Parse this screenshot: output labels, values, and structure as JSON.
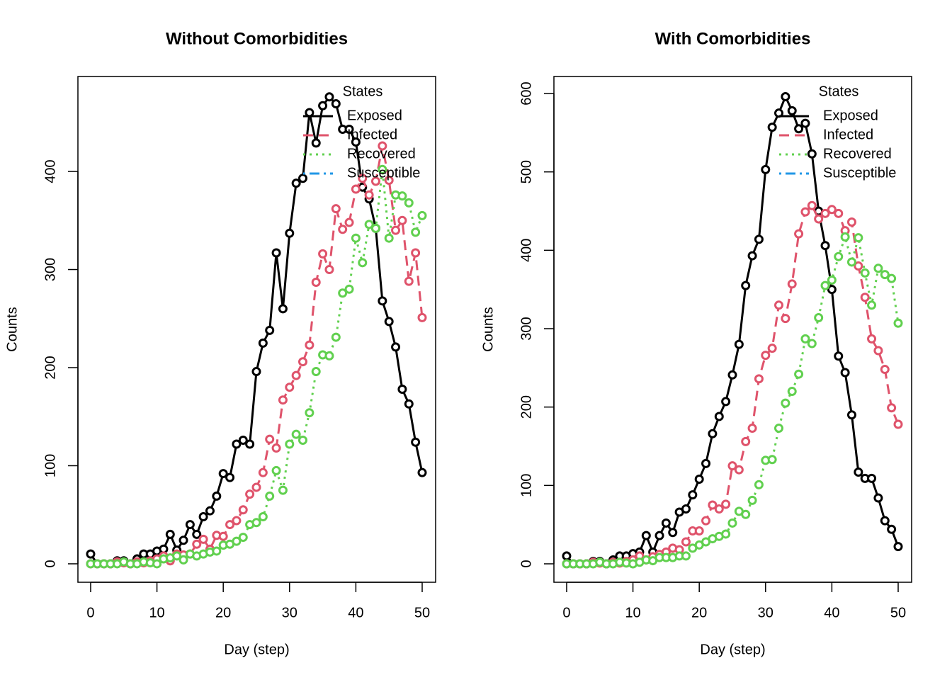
{
  "chart_data": [
    {
      "type": "line",
      "title": "Without Comorbidities",
      "x_label": "Day (step)",
      "y_label": "Counts",
      "x": [
        0,
        1,
        2,
        3,
        4,
        5,
        6,
        7,
        8,
        9,
        10,
        11,
        12,
        13,
        14,
        15,
        16,
        17,
        18,
        19,
        20,
        21,
        22,
        23,
        24,
        25,
        26,
        27,
        28,
        29,
        30,
        31,
        32,
        33,
        34,
        35,
        36,
        37,
        38,
        39,
        40,
        41,
        42,
        43,
        44,
        45,
        46,
        47,
        48,
        49,
        50
      ],
      "xlim": [
        -1.92,
        52.03
      ],
      "xticks": [
        0,
        10,
        20,
        30,
        40,
        50
      ],
      "ylim": [
        -18.8,
        496.8
      ],
      "yticks": [
        0,
        100,
        200,
        300,
        400
      ],
      "legend": "topright",
      "legend_title": "States",
      "series": [
        {
          "name": "Exposed",
          "color": "#000000",
          "dash": "solid",
          "values": [
            10,
            0,
            0,
            0,
            3,
            3,
            0,
            5,
            10,
            10,
            13,
            15,
            30,
            14,
            24,
            40,
            30,
            48,
            54,
            69,
            92,
            88,
            122,
            126,
            122,
            196,
            225,
            238,
            317,
            260,
            337,
            388,
            393,
            460,
            429,
            467,
            476,
            469,
            443,
            443,
            430,
            384,
            372,
            342,
            268,
            247,
            221,
            178,
            163,
            124,
            93
          ]
        },
        {
          "name": "Infected",
          "color": "#DF536B",
          "dash": "dashed",
          "values": [
            0,
            0,
            0,
            0,
            2,
            1,
            0,
            2,
            1,
            3,
            5,
            8,
            3,
            10,
            9,
            10,
            20,
            25,
            15,
            29,
            28,
            40,
            44,
            55,
            71,
            78,
            93,
            127,
            118,
            167,
            180,
            192,
            206,
            223,
            287,
            316,
            300,
            362,
            341,
            348,
            382,
            393,
            376,
            390,
            426,
            391,
            340,
            350,
            288,
            317,
            251
          ]
        },
        {
          "name": "Recovered",
          "color": "#61D04F",
          "dash": "dotted",
          "values": [
            0,
            0,
            0,
            0,
            0,
            2,
            0,
            0,
            2,
            1,
            0,
            5,
            6,
            8,
            4,
            10,
            8,
            10,
            12,
            13,
            19,
            20,
            23,
            27,
            40,
            42,
            48,
            69,
            95,
            75,
            122,
            132,
            126,
            154,
            196,
            213,
            212,
            231,
            276,
            280,
            332,
            307,
            346,
            342,
            402,
            332,
            376,
            375,
            368,
            338,
            355
          ]
        },
        {
          "name": "Susceptible",
          "color": "#2297E6",
          "dash": "dotdash",
          "values": [
            null,
            null,
            null,
            null,
            null,
            null,
            null,
            null,
            null,
            null,
            null,
            null,
            null,
            null,
            null,
            null,
            null,
            null,
            null,
            null,
            null,
            null,
            null,
            null,
            null,
            null,
            null,
            null,
            null,
            null,
            null,
            null,
            null,
            null,
            null,
            null,
            null,
            null,
            null,
            null,
            null,
            null,
            null,
            null,
            null,
            null,
            null,
            null,
            null,
            null,
            null
          ]
        }
      ]
    },
    {
      "type": "line",
      "title": "With Comorbidities",
      "x_label": "Day (step)",
      "y_label": "Counts",
      "x": [
        0,
        1,
        2,
        3,
        4,
        5,
        6,
        7,
        8,
        9,
        10,
        11,
        12,
        13,
        14,
        15,
        16,
        17,
        18,
        19,
        20,
        21,
        22,
        23,
        24,
        25,
        26,
        27,
        28,
        29,
        30,
        31,
        32,
        33,
        34,
        35,
        36,
        37,
        38,
        39,
        40,
        41,
        42,
        43,
        44,
        45,
        46,
        47,
        48,
        49,
        50
      ],
      "xlim": [
        -1.92,
        52.03
      ],
      "xticks": [
        0,
        10,
        20,
        30,
        40,
        50
      ],
      "ylim": [
        -23.5,
        621.7
      ],
      "yticks": [
        0,
        100,
        200,
        300,
        400,
        500,
        600
      ],
      "legend": "topright",
      "legend_title": "States",
      "series": [
        {
          "name": "Exposed",
          "color": "#000000",
          "dash": "solid",
          "values": [
            10,
            0,
            0,
            0,
            3,
            3,
            0,
            5,
            10,
            10,
            13,
            15,
            36,
            15,
            36,
            52,
            40,
            66,
            70,
            88,
            108,
            128,
            166,
            188,
            207,
            241,
            280,
            355,
            393,
            414,
            503,
            557,
            575,
            596,
            578,
            555,
            562,
            523,
            450,
            406,
            350,
            265,
            244,
            190,
            117,
            109,
            109,
            84,
            55,
            44,
            22
          ]
        },
        {
          "name": "Infected",
          "color": "#DF536B",
          "dash": "dashed",
          "values": [
            0,
            0,
            0,
            0,
            2,
            1,
            0,
            2,
            1,
            3,
            5,
            10,
            5,
            9,
            12,
            15,
            20,
            18,
            28,
            42,
            42,
            55,
            75,
            70,
            76,
            125,
            120,
            156,
            173,
            236,
            266,
            275,
            330,
            313,
            357,
            421,
            449,
            457,
            440,
            447,
            452,
            447,
            425,
            436,
            380,
            340,
            287,
            272,
            248,
            199,
            178
          ]
        },
        {
          "name": "Recovered",
          "color": "#61D04F",
          "dash": "dotted",
          "values": [
            0,
            0,
            0,
            0,
            0,
            2,
            0,
            0,
            2,
            1,
            0,
            2,
            5,
            4,
            8,
            8,
            8,
            10,
            10,
            20,
            24,
            28,
            32,
            35,
            38,
            52,
            67,
            63,
            81,
            101,
            132,
            133,
            173,
            205,
            220,
            242,
            287,
            281,
            314,
            355,
            362,
            392,
            417,
            385,
            416,
            371,
            330,
            377,
            369,
            364,
            307
          ]
        },
        {
          "name": "Susceptible",
          "color": "#2297E6",
          "dash": "dotdash",
          "values": [
            null,
            null,
            null,
            null,
            null,
            null,
            null,
            null,
            null,
            null,
            null,
            null,
            null,
            null,
            null,
            null,
            null,
            null,
            null,
            null,
            null,
            null,
            null,
            null,
            null,
            null,
            null,
            null,
            null,
            null,
            null,
            null,
            null,
            null,
            null,
            null,
            null,
            null,
            null,
            null,
            null,
            null,
            null,
            null,
            null,
            null,
            null,
            null,
            null,
            null,
            null
          ]
        }
      ]
    }
  ]
}
